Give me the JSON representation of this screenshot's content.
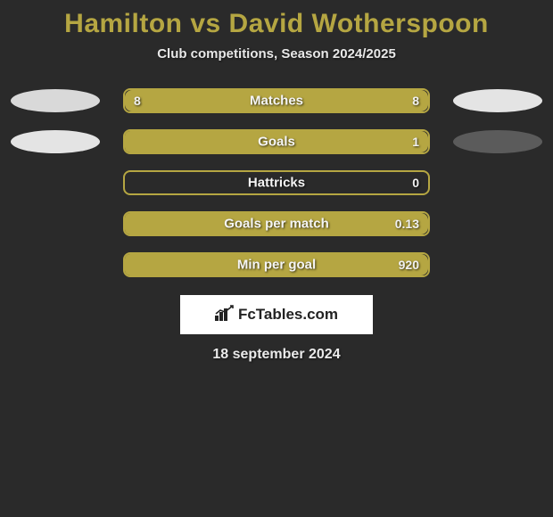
{
  "background_color": "#2a2a2a",
  "accent_color": "#b5a642",
  "title": "Hamilton vs David Wotherspoon",
  "title_color": "#b5a642",
  "title_fontsize": 30,
  "subtitle": "Club competitions, Season 2024/2025",
  "subtitle_color": "#e8e8e8",
  "subtitle_fontsize": 15,
  "bar_track_width": 344,
  "bar_track_height": 28,
  "bar_border_radius": 8,
  "bar_border_color": "#b5a642",
  "bar_fill_color": "#b5a642",
  "value_text_color": "#f0f0f0",
  "label_text_color": "#f5f5f5",
  "text_shadow": "1px 1px 2px rgba(0,0,0,0.7)",
  "side_ovals": {
    "row1": {
      "left_color": "#d9d9d9",
      "right_color": "#e4e4e4"
    },
    "row2": {
      "left_color": "#e4e4e4",
      "right_color": "#5b5b5b"
    }
  },
  "rows": [
    {
      "label": "Matches",
      "left_value": "8",
      "right_value": "8",
      "left_pct": 50,
      "right_pct": 50,
      "show_oval": true,
      "oval_key": "row1"
    },
    {
      "label": "Goals",
      "left_value": null,
      "right_value": "1",
      "left_pct": 0,
      "right_pct": 100,
      "show_oval": true,
      "oval_key": "row2"
    },
    {
      "label": "Hattricks",
      "left_value": null,
      "right_value": "0",
      "left_pct": 0,
      "right_pct": 0,
      "show_oval": false
    },
    {
      "label": "Goals per match",
      "left_value": null,
      "right_value": "0.13",
      "left_pct": 0,
      "right_pct": 100,
      "show_oval": false
    },
    {
      "label": "Min per goal",
      "left_value": null,
      "right_value": "920",
      "left_pct": 0,
      "right_pct": 100,
      "show_oval": false
    }
  ],
  "logo": {
    "text_prefix": "Fc",
    "text_suffix": "Tables.com",
    "box_bg": "#ffffff",
    "text_color": "#222222",
    "icon_color": "#222222"
  },
  "date": "18 september 2024",
  "date_color": "#eaeaea",
  "date_fontsize": 16
}
